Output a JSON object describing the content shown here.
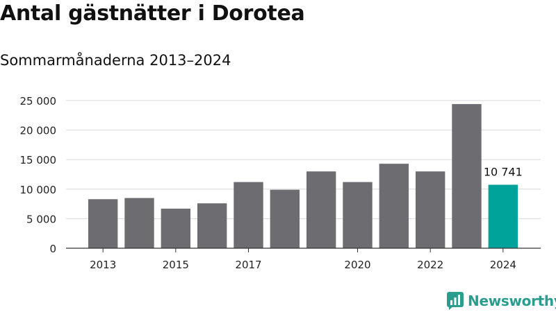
{
  "title": "Antal gästnätter i Dorotea",
  "subtitle": "Sommarmånaderna 2013–2024",
  "brand": {
    "name": "Newsworthy",
    "color": "#2a9d8f",
    "icon": "newsworthy-logo-icon"
  },
  "colors": {
    "bar": "#6d6c71",
    "highlight": "#00a39a",
    "grid": "#d9d9d9",
    "axis": "#333333"
  },
  "chart_data": {
    "type": "bar",
    "categories": [
      "2013",
      "2014",
      "2015",
      "2016",
      "2017",
      "2018",
      "2019",
      "2020",
      "2021",
      "2022",
      "2023",
      "2024"
    ],
    "values": [
      8300,
      8500,
      6700,
      7600,
      11200,
      9900,
      13000,
      11200,
      14300,
      13000,
      24400,
      10741
    ],
    "x_tick_labels": [
      "2013",
      "2015",
      "2017",
      "2020",
      "2022",
      "2024"
    ],
    "y_ticks": [
      0,
      5000,
      10000,
      15000,
      20000,
      25000
    ],
    "y_tick_labels": [
      "0",
      "5 000",
      "10 000",
      "15 000",
      "20 000",
      "25 000"
    ],
    "ylim": [
      0,
      25000
    ],
    "highlight_index": 11,
    "highlight_label": "10 741",
    "grid": true,
    "xlabel": "",
    "ylabel": ""
  }
}
